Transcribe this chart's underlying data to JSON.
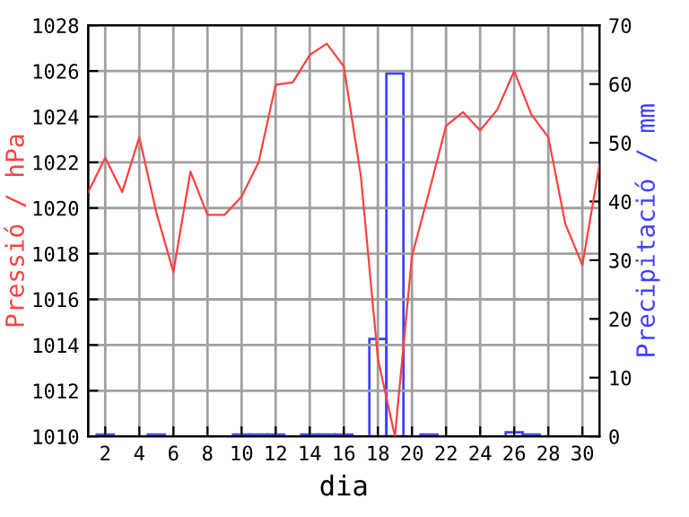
{
  "chart_data": {
    "type": "line",
    "xlabel": "dia",
    "ylabel": "Pressió / hPa",
    "y2label": "Precipitació / mm",
    "x": [
      1,
      2,
      3,
      4,
      5,
      6,
      7,
      8,
      9,
      10,
      11,
      12,
      13,
      14,
      15,
      16,
      17,
      18,
      19,
      20,
      21,
      22,
      23,
      24,
      25,
      26,
      27,
      28,
      29,
      30,
      31
    ],
    "series": [
      {
        "color": "#ff4040",
        "values": [
          1020.7,
          1022.2,
          1020.7,
          1023.1,
          1019.8,
          1017.2,
          1021.6,
          1019.7,
          1019.7,
          1020.5,
          1022.0,
          1025.4,
          1025.5,
          1026.7,
          1027.2,
          1026.2,
          1021.4,
          1013.4,
          1010.0,
          1017.9,
          1020.7,
          1023.6,
          1024.2,
          1023.4,
          1024.3,
          1026.0,
          1024.1,
          1023.1,
          1019.3,
          1017.5,
          1021.9
        ]
      },
      {
        "type": "bar",
        "axis": "y2",
        "color": "#4040ff",
        "x": [
          2,
          5,
          10,
          11,
          12,
          14,
          15,
          16,
          18,
          19,
          21,
          26,
          27
        ],
        "values": [
          0.3,
          0.3,
          0.3,
          0.3,
          0.3,
          0.3,
          0.3,
          0.3,
          16.6,
          61.8,
          0.3,
          0.7,
          0.3
        ]
      }
    ],
    "xlim": [
      1,
      31
    ],
    "xticks": [
      2,
      4,
      6,
      8,
      10,
      12,
      14,
      16,
      18,
      20,
      22,
      24,
      26,
      28,
      30
    ],
    "ylim": [
      1010,
      1028
    ],
    "yticks": [
      1010,
      1012,
      1014,
      1016,
      1018,
      1020,
      1022,
      1024,
      1026,
      1028
    ],
    "y2lim": [
      0,
      70
    ],
    "y2ticks": [
      0,
      10,
      20,
      30,
      40,
      50,
      60,
      70
    ],
    "grid": true
  }
}
